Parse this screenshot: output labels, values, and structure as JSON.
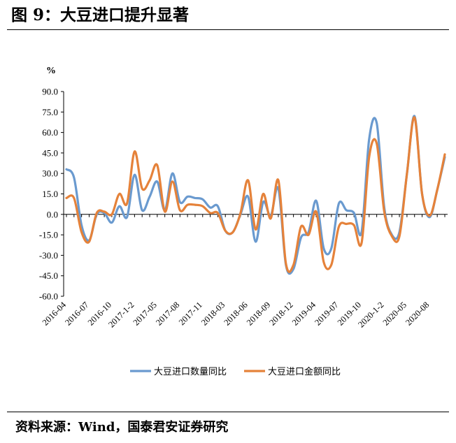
{
  "figure": {
    "title": "图 9：大豆进口提升显著",
    "source": "资料来源：Wind，国泰君安证券研究"
  },
  "chart_data": {
    "type": "line",
    "unit_label": "%",
    "ylim": [
      -60,
      90
    ],
    "y_ticks": [
      "90.0",
      "75.0",
      "60.0",
      "45.0",
      "30.0",
      "15.0",
      "0.0",
      "-15.0",
      "-30.0",
      "-45.0",
      "-60.0"
    ],
    "x_tick_labels": [
      "2016-04",
      "2016-07",
      "2016-10",
      "2017-1-2",
      "2017-05",
      "2017-08",
      "2017-11",
      "2018-03",
      "2018-06",
      "2018-09",
      "2018-12",
      "2019-04",
      "2019-07",
      "2019-10",
      "2020-1-2",
      "2020-05",
      "2020-08"
    ],
    "legend_position": "bottom",
    "grid": false,
    "series": [
      {
        "name": "大豆进口数量同比",
        "color": "#6A9ACF",
        "values": [
          33,
          27,
          -8,
          -19,
          0,
          1,
          -6,
          6,
          -2,
          29,
          3,
          13,
          24,
          3,
          30,
          9,
          13,
          12,
          11,
          5,
          6,
          -12,
          -13,
          0,
          13,
          -20,
          9,
          -1,
          19,
          -37,
          -40,
          -17,
          -13,
          10,
          -25,
          -25,
          8,
          3,
          1,
          -13,
          55,
          67,
          5,
          -15,
          -13,
          30,
          72,
          15,
          -2,
          18,
          42
        ]
      },
      {
        "name": "大豆进口金额同比",
        "color": "#E5823A",
        "values": [
          12,
          12,
          -13,
          -20,
          1,
          2,
          0,
          15,
          8,
          46,
          19,
          25,
          36,
          2,
          24,
          3,
          7,
          7,
          6,
          1,
          1,
          -12,
          -13,
          1,
          25,
          -11,
          15,
          -3,
          25,
          -36,
          -37,
          -9,
          -15,
          2,
          -35,
          -37,
          -9,
          -7,
          -8,
          -21,
          42,
          52,
          2,
          -16,
          -16,
          30,
          71,
          15,
          -1,
          18,
          44
        ]
      }
    ]
  }
}
